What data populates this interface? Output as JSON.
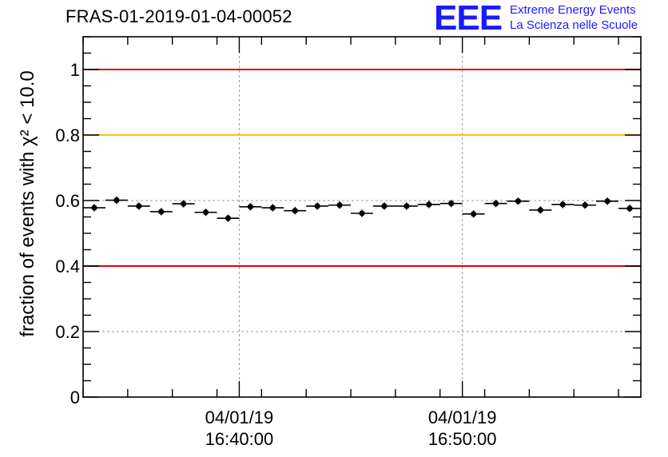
{
  "header": {
    "title": "FRAS-01-2019-01-04-00052"
  },
  "logo": {
    "mark": "EEE",
    "line1": "Extreme Energy Events",
    "line2": "La Scienza nelle Scuole",
    "color": "#1a1aff"
  },
  "chart_data": {
    "type": "scatter",
    "ylabel": "fraction of events with χ² < 10.0",
    "ylim": [
      0,
      1.1
    ],
    "yticks": [
      0,
      0.2,
      0.4,
      0.6,
      0.8,
      1
    ],
    "ytick_labels": [
      "0",
      "0.2",
      "0.4",
      "0.6",
      "0.8",
      "1"
    ],
    "xlim": [
      0,
      25
    ],
    "xticks": [
      {
        "x": 7,
        "label_date": "04/01/19",
        "label_time": "16:40:00"
      },
      {
        "x": 17,
        "label_date": "04/01/19",
        "label_time": "16:50:00"
      }
    ],
    "grid": true,
    "reference_lines": [
      {
        "y": 1.0,
        "color": "#e00000"
      },
      {
        "y": 0.8,
        "color": "#ffc000"
      },
      {
        "y": 0.4,
        "color": "#e00000"
      }
    ],
    "points": [
      {
        "x": 0.5,
        "y": 0.578
      },
      {
        "x": 1.5,
        "y": 0.601
      },
      {
        "x": 2.5,
        "y": 0.583
      },
      {
        "x": 3.5,
        "y": 0.566
      },
      {
        "x": 4.5,
        "y": 0.59
      },
      {
        "x": 5.5,
        "y": 0.564
      },
      {
        "x": 6.5,
        "y": 0.546
      },
      {
        "x": 7.5,
        "y": 0.581
      },
      {
        "x": 8.5,
        "y": 0.578
      },
      {
        "x": 9.5,
        "y": 0.569
      },
      {
        "x": 10.5,
        "y": 0.583
      },
      {
        "x": 11.5,
        "y": 0.586
      },
      {
        "x": 12.5,
        "y": 0.561
      },
      {
        "x": 13.5,
        "y": 0.583
      },
      {
        "x": 14.5,
        "y": 0.583
      },
      {
        "x": 15.5,
        "y": 0.588
      },
      {
        "x": 16.5,
        "y": 0.591
      },
      {
        "x": 17.5,
        "y": 0.559
      },
      {
        "x": 18.5,
        "y": 0.591
      },
      {
        "x": 19.5,
        "y": 0.598
      },
      {
        "x": 20.5,
        "y": 0.571
      },
      {
        "x": 21.5,
        "y": 0.588
      },
      {
        "x": 22.5,
        "y": 0.586
      },
      {
        "x": 23.5,
        "y": 0.598
      },
      {
        "x": 24.5,
        "y": 0.576
      }
    ],
    "y_error": 0.011
  }
}
